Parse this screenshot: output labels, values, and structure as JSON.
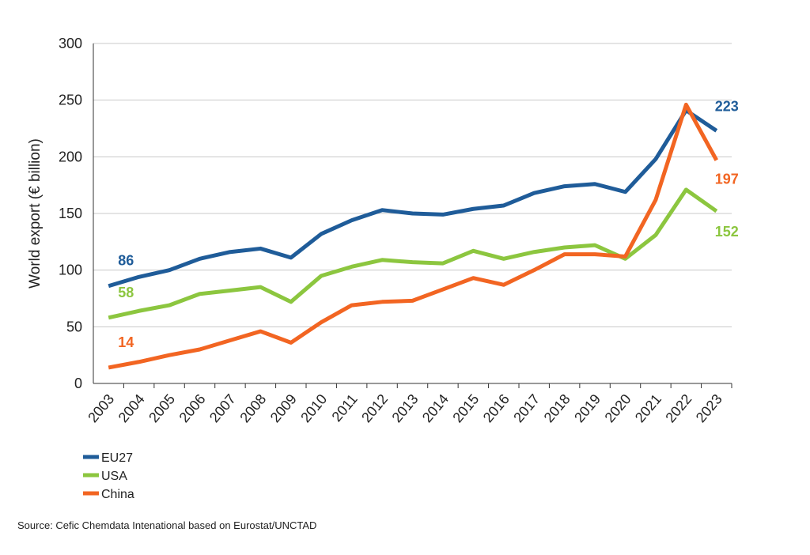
{
  "chart_data": {
    "type": "line",
    "ylabel": "World export (€ billion)",
    "categories": [
      "2003",
      "2004",
      "2005",
      "2006",
      "2007",
      "2008",
      "2009",
      "2010",
      "2011",
      "2012",
      "2013",
      "2014",
      "2015",
      "2016",
      "2017",
      "2018",
      "2019",
      "2020",
      "2021",
      "2022",
      "2023"
    ],
    "series": [
      {
        "name": "EU27",
        "color": "#1f5c99",
        "values": [
          86,
          94,
          100,
          110,
          116,
          119,
          111,
          132,
          144,
          153,
          150,
          149,
          154,
          157,
          168,
          174,
          176,
          169,
          198,
          241,
          223
        ]
      },
      {
        "name": "USA",
        "color": "#8cc63f",
        "values": [
          58,
          64,
          69,
          79,
          82,
          85,
          72,
          95,
          103,
          109,
          107,
          106,
          117,
          110,
          116,
          120,
          122,
          110,
          131,
          171,
          152
        ]
      },
      {
        "name": "China",
        "color": "#f26522",
        "values": [
          14,
          19,
          25,
          30,
          38,
          46,
          36,
          54,
          69,
          72,
          73,
          83,
          93,
          87,
          100,
          114,
          114,
          112,
          162,
          246,
          197
        ]
      }
    ],
    "ylim": [
      0,
      300
    ],
    "yticks": [
      0,
      50,
      100,
      150,
      200,
      250,
      300
    ],
    "grid": true,
    "source": "Source: Cefic Chemdata Intenational based on Eurostat/UNCTAD"
  }
}
